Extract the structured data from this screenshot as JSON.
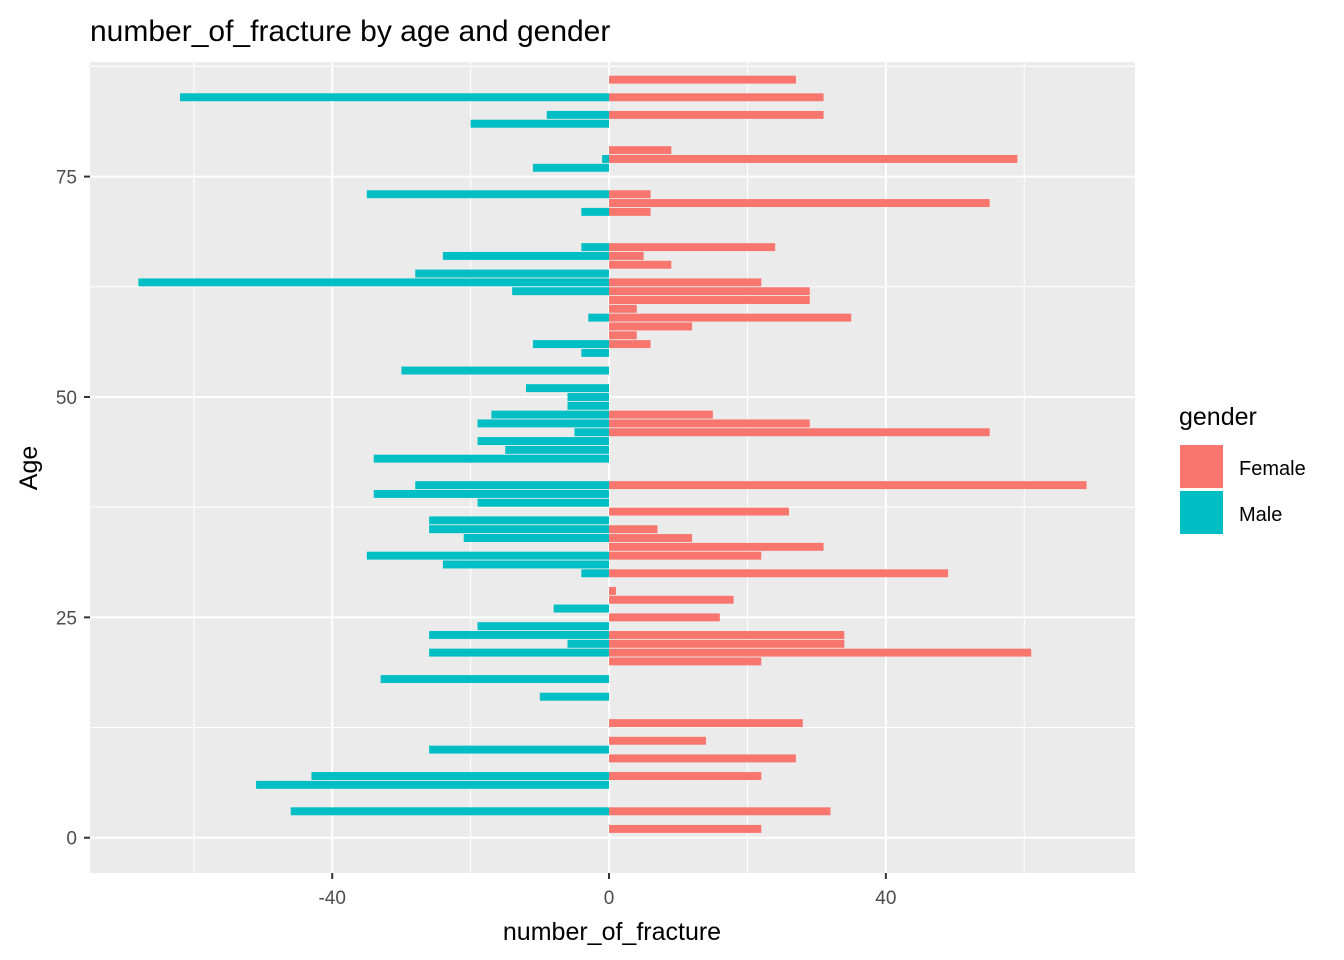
{
  "chart_data": {
    "type": "bar",
    "orientation": "horizontal",
    "title": "number_of_fracture by age and gender",
    "xlabel": "number_of_fracture",
    "ylabel": "Age",
    "xlim": [
      -75,
      76
    ],
    "ylim": [
      -4,
      88
    ],
    "x_ticks": [
      -40,
      0,
      40
    ],
    "x_tick_labels": [
      "-40",
      "0",
      "40"
    ],
    "y_ticks": [
      0,
      25,
      50,
      75
    ],
    "y_tick_labels": [
      "0",
      "25",
      "50",
      "75"
    ],
    "grid": true,
    "legend": {
      "title": "gender",
      "position": "right"
    },
    "series": [
      {
        "name": "Female",
        "color": "#F8766D",
        "points": [
          {
            "age": 86,
            "value": 27
          },
          {
            "age": 84,
            "value": 31
          },
          {
            "age": 82,
            "value": 31
          },
          {
            "age": 78,
            "value": 9
          },
          {
            "age": 77,
            "value": 59
          },
          {
            "age": 73,
            "value": 6
          },
          {
            "age": 72,
            "value": 55
          },
          {
            "age": 71,
            "value": 6
          },
          {
            "age": 67,
            "value": 24
          },
          {
            "age": 66,
            "value": 5
          },
          {
            "age": 65,
            "value": 9
          },
          {
            "age": 63,
            "value": 22
          },
          {
            "age": 62,
            "value": 29
          },
          {
            "age": 61,
            "value": 29
          },
          {
            "age": 60,
            "value": 4
          },
          {
            "age": 59,
            "value": 35
          },
          {
            "age": 58,
            "value": 12
          },
          {
            "age": 57,
            "value": 4
          },
          {
            "age": 56,
            "value": 6
          },
          {
            "age": 48,
            "value": 15
          },
          {
            "age": 47,
            "value": 29
          },
          {
            "age": 46,
            "value": 55
          },
          {
            "age": 40,
            "value": 69
          },
          {
            "age": 37,
            "value": 26
          },
          {
            "age": 35,
            "value": 7
          },
          {
            "age": 34,
            "value": 12
          },
          {
            "age": 33,
            "value": 31
          },
          {
            "age": 32,
            "value": 22
          },
          {
            "age": 30,
            "value": 49
          },
          {
            "age": 28,
            "value": 1
          },
          {
            "age": 27,
            "value": 18
          },
          {
            "age": 25,
            "value": 16
          },
          {
            "age": 23,
            "value": 34
          },
          {
            "age": 22,
            "value": 34
          },
          {
            "age": 21,
            "value": 61
          },
          {
            "age": 20,
            "value": 22
          },
          {
            "age": 13,
            "value": 28
          },
          {
            "age": 11,
            "value": 14
          },
          {
            "age": 9,
            "value": 27
          },
          {
            "age": 7,
            "value": 22
          },
          {
            "age": 3,
            "value": 32
          },
          {
            "age": 1,
            "value": 22
          }
        ]
      },
      {
        "name": "Male",
        "color": "#00BFC4",
        "points": [
          {
            "age": 84,
            "value": -62
          },
          {
            "age": 82,
            "value": -9
          },
          {
            "age": 81,
            "value": -20
          },
          {
            "age": 77,
            "value": -1
          },
          {
            "age": 76,
            "value": -11
          },
          {
            "age": 73,
            "value": -35
          },
          {
            "age": 71,
            "value": -4
          },
          {
            "age": 67,
            "value": -4
          },
          {
            "age": 66,
            "value": -24
          },
          {
            "age": 64,
            "value": -28
          },
          {
            "age": 63,
            "value": -68
          },
          {
            "age": 62,
            "value": -14
          },
          {
            "age": 59,
            "value": -3
          },
          {
            "age": 56,
            "value": -11
          },
          {
            "age": 55,
            "value": -4
          },
          {
            "age": 53,
            "value": -30
          },
          {
            "age": 51,
            "value": -12
          },
          {
            "age": 50,
            "value": -6
          },
          {
            "age": 49,
            "value": -6
          },
          {
            "age": 48,
            "value": -17
          },
          {
            "age": 47,
            "value": -19
          },
          {
            "age": 46,
            "value": -5
          },
          {
            "age": 45,
            "value": -19
          },
          {
            "age": 44,
            "value": -15
          },
          {
            "age": 43,
            "value": -34
          },
          {
            "age": 40,
            "value": -28
          },
          {
            "age": 39,
            "value": -34
          },
          {
            "age": 38,
            "value": -19
          },
          {
            "age": 36,
            "value": -26
          },
          {
            "age": 35,
            "value": -26
          },
          {
            "age": 34,
            "value": -21
          },
          {
            "age": 32,
            "value": -35
          },
          {
            "age": 31,
            "value": -24
          },
          {
            "age": 30,
            "value": -4
          },
          {
            "age": 26,
            "value": -8
          },
          {
            "age": 24,
            "value": -19
          },
          {
            "age": 23,
            "value": -26
          },
          {
            "age": 22,
            "value": -6
          },
          {
            "age": 21,
            "value": -26
          },
          {
            "age": 18,
            "value": -33
          },
          {
            "age": 16,
            "value": -10
          },
          {
            "age": 10,
            "value": -26
          },
          {
            "age": 7,
            "value": -43
          },
          {
            "age": 6,
            "value": -51
          },
          {
            "age": 3,
            "value": -46
          }
        ]
      }
    ]
  }
}
